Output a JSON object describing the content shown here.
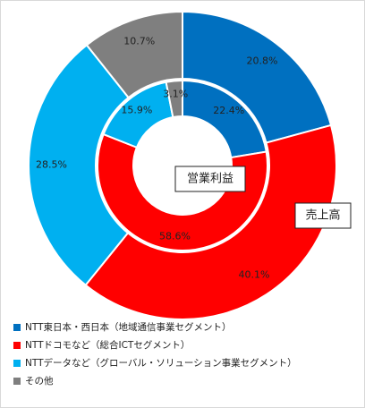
{
  "chart_data": {
    "type": "donut",
    "categories": [
      "NTT東日本・西日本（地域通信事業セグメント）",
      "NTTドコモなど（総合ICTセグメント）",
      "NTTデータなど（グローバル・ソリューション事業セグメント）",
      "その他"
    ],
    "colors": [
      "#0070c0",
      "#ff0000",
      "#00b0f0",
      "#7f7f7f"
    ],
    "series": [
      {
        "name": "売上高",
        "values": [
          20.8,
          40.1,
          28.5,
          10.7
        ],
        "value_labels": [
          "20.8%",
          "40.1%",
          "28.5%",
          "10.7%"
        ]
      },
      {
        "name": "営業利益",
        "values": [
          22.4,
          58.6,
          15.9,
          3.1
        ],
        "value_labels": [
          "22.4%",
          "58.6%",
          "15.9%",
          "3.1%"
        ]
      }
    ]
  }
}
